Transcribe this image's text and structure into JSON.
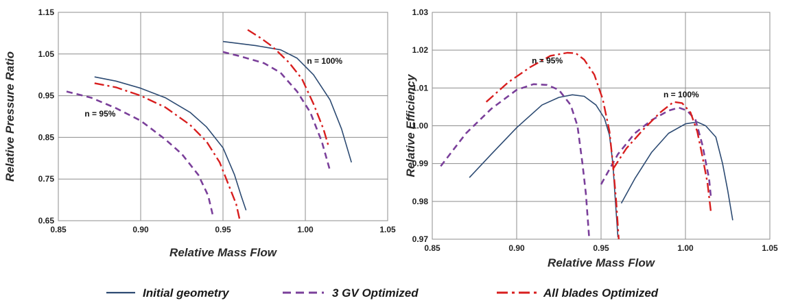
{
  "colors": {
    "initial": "#2c4a72",
    "gv3": "#7a3f9a",
    "all": "#d81e1e"
  },
  "legend": {
    "placement": "bottom-center",
    "items": [
      {
        "label": "Initial geometry",
        "style": "solid",
        "color": "#2c4a72"
      },
      {
        "label": "3 GV Optimized",
        "style": "dashed",
        "color": "#7a3f9a"
      },
      {
        "label": "All blades Optimized",
        "style": "dashdot",
        "color": "#d81e1e"
      }
    ]
  },
  "chart_data": [
    {
      "type": "line",
      "xlabel": "Relative Mass Flow",
      "ylabel": "Relative Pressure Ratio",
      "xlim": [
        0.85,
        1.05
      ],
      "ylim": [
        0.65,
        1.15
      ],
      "xticks": [
        "0.85",
        "0.90",
        "0.95",
        "1.00",
        "1.05"
      ],
      "yticks": [
        "0.65",
        "0.75",
        "0.85",
        "0.95",
        "1.05",
        "1.15"
      ],
      "grid": true,
      "annotations": [
        {
          "text": "n = 95%",
          "x": 0.866,
          "y": 0.9
        },
        {
          "text": "n = 100%",
          "x": 1.001,
          "y": 1.027
        }
      ],
      "series": [
        {
          "name": "Initial geometry",
          "style": "solid",
          "group": "n = 95%",
          "points": [
            [
              0.872,
              0.995
            ],
            [
              0.885,
              0.985
            ],
            [
              0.9,
              0.968
            ],
            [
              0.915,
              0.945
            ],
            [
              0.93,
              0.91
            ],
            [
              0.94,
              0.875
            ],
            [
              0.95,
              0.825
            ],
            [
              0.957,
              0.76
            ],
            [
              0.961,
              0.71
            ],
            [
              0.964,
              0.675
            ]
          ]
        },
        {
          "name": "Initial geometry",
          "style": "solid",
          "group": "n = 100%",
          "points": [
            [
              0.95,
              1.08
            ],
            [
              0.97,
              1.07
            ],
            [
              0.985,
              1.06
            ],
            [
              0.995,
              1.04
            ],
            [
              1.005,
              1.0
            ],
            [
              1.015,
              0.94
            ],
            [
              1.022,
              0.87
            ],
            [
              1.028,
              0.79
            ]
          ]
        },
        {
          "name": "3 GV Optimized",
          "style": "dashed",
          "group": "n = 95%",
          "points": [
            [
              0.855,
              0.96
            ],
            [
              0.87,
              0.945
            ],
            [
              0.885,
              0.92
            ],
            [
              0.9,
              0.89
            ],
            [
              0.915,
              0.845
            ],
            [
              0.925,
              0.81
            ],
            [
              0.935,
              0.76
            ],
            [
              0.941,
              0.71
            ],
            [
              0.944,
              0.66
            ]
          ]
        },
        {
          "name": "3 GV Optimized",
          "style": "dashed",
          "group": "n = 100%",
          "points": [
            [
              0.95,
              1.055
            ],
            [
              0.96,
              1.045
            ],
            [
              0.975,
              1.028
            ],
            [
              0.985,
              1.005
            ],
            [
              0.995,
              0.96
            ],
            [
              1.003,
              0.91
            ],
            [
              1.01,
              0.84
            ],
            [
              1.015,
              0.77
            ]
          ]
        },
        {
          "name": "All blades Optimized",
          "style": "dashdot",
          "group": "n = 95%",
          "points": [
            [
              0.872,
              0.98
            ],
            [
              0.885,
              0.97
            ],
            [
              0.9,
              0.95
            ],
            [
              0.915,
              0.922
            ],
            [
              0.93,
              0.88
            ],
            [
              0.94,
              0.84
            ],
            [
              0.948,
              0.79
            ],
            [
              0.954,
              0.73
            ],
            [
              0.958,
              0.69
            ],
            [
              0.96,
              0.655
            ]
          ]
        },
        {
          "name": "All blades Optimized",
          "style": "dashdot",
          "group": "n = 100%",
          "points": [
            [
              0.965,
              1.108
            ],
            [
              0.973,
              1.088
            ],
            [
              0.98,
              1.068
            ],
            [
              0.99,
              1.03
            ],
            [
              0.998,
              0.99
            ],
            [
              1.005,
              0.93
            ],
            [
              1.011,
              0.87
            ],
            [
              1.014,
              0.83
            ]
          ]
        }
      ]
    },
    {
      "type": "line",
      "xlabel": "Relative Mass Flow",
      "ylabel": "Relative Efficiency",
      "xlim": [
        0.85,
        1.05
      ],
      "ylim": [
        0.97,
        1.03
      ],
      "xticks": [
        "0.85",
        "0.90",
        "0.95",
        "1.00",
        "1.05"
      ],
      "yticks": [
        "0.97",
        "0.98",
        "0.99",
        "1.00",
        "1.01",
        "1.02",
        "1.03"
      ],
      "grid": true,
      "annotations": [
        {
          "text": "n = 95%",
          "x": 0.909,
          "y": 1.0165
        },
        {
          "text": "n = 100%",
          "x": 0.987,
          "y": 1.0075
        }
      ],
      "series": [
        {
          "name": "Initial geometry",
          "style": "solid",
          "group": "n = 95%",
          "points": [
            [
              0.872,
              0.9863
            ],
            [
              0.885,
              0.9925
            ],
            [
              0.9,
              0.9995
            ],
            [
              0.915,
              1.0055
            ],
            [
              0.925,
              1.0075
            ],
            [
              0.933,
              1.0082
            ],
            [
              0.94,
              1.0078
            ],
            [
              0.947,
              1.0055
            ],
            [
              0.952,
              1.002
            ],
            [
              0.955,
              0.9975
            ],
            [
              0.957,
              0.99
            ],
            [
              0.9585,
              0.98
            ],
            [
              0.96,
              0.9705
            ]
          ]
        },
        {
          "name": "Initial geometry",
          "style": "solid",
          "group": "n = 100%",
          "points": [
            [
              0.962,
              0.9795
            ],
            [
              0.97,
              0.986
            ],
            [
              0.98,
              0.993
            ],
            [
              0.99,
              0.998
            ],
            [
              1.0,
              1.0005
            ],
            [
              1.007,
              1.001
            ],
            [
              1.012,
              1.0
            ],
            [
              1.018,
              0.997
            ],
            [
              1.022,
              0.99
            ],
            [
              1.025,
              0.983
            ],
            [
              1.028,
              0.975
            ]
          ]
        },
        {
          "name": "3 GV Optimized",
          "style": "dashed",
          "group": "n = 95%",
          "points": [
            [
              0.855,
              0.9893
            ],
            [
              0.87,
              0.998
            ],
            [
              0.885,
              1.0045
            ],
            [
              0.9,
              1.0095
            ],
            [
              0.91,
              1.011
            ],
            [
              0.918,
              1.0108
            ],
            [
              0.925,
              1.0095
            ],
            [
              0.932,
              1.0055
            ],
            [
              0.936,
              1.0
            ],
            [
              0.939,
              0.99
            ],
            [
              0.941,
              0.982
            ],
            [
              0.943,
              0.97
            ]
          ]
        },
        {
          "name": "3 GV Optimized",
          "style": "dashed",
          "group": "n = 100%",
          "points": [
            [
              0.95,
              0.9845
            ],
            [
              0.96,
              0.9925
            ],
            [
              0.97,
              0.998
            ],
            [
              0.98,
              1.0015
            ],
            [
              0.99,
              1.004
            ],
            [
              0.996,
              1.0048
            ],
            [
              1.001,
              1.004
            ],
            [
              1.006,
              1.0015
            ],
            [
              1.01,
              0.995
            ],
            [
              1.014,
              0.986
            ],
            [
              1.015,
              0.9815
            ]
          ]
        },
        {
          "name": "All blades Optimized",
          "style": "dashdot",
          "group": "n = 95%",
          "points": [
            [
              0.882,
              1.0063
            ],
            [
              0.895,
              1.0115
            ],
            [
              0.908,
              1.0155
            ],
            [
              0.92,
              1.0185
            ],
            [
              0.93,
              1.0193
            ],
            [
              0.935,
              1.0192
            ],
            [
              0.94,
              1.0175
            ],
            [
              0.946,
              1.0135
            ],
            [
              0.951,
              1.007
            ],
            [
              0.955,
              0.9985
            ],
            [
              0.957,
              0.99
            ],
            [
              0.959,
              0.98
            ],
            [
              0.9605,
              0.97
            ]
          ]
        },
        {
          "name": "All blades Optimized",
          "style": "dashdot",
          "group": "n = 100%",
          "points": [
            [
              0.957,
              0.9885
            ],
            [
              0.965,
              0.994
            ],
            [
              0.975,
              0.999
            ],
            [
              0.985,
              1.0035
            ],
            [
              0.993,
              1.0063
            ],
            [
              0.998,
              1.006
            ],
            [
              1.003,
              1.0035
            ],
            [
              1.007,
              0.9985
            ],
            [
              1.01,
              0.992
            ],
            [
              1.013,
              0.985
            ],
            [
              1.015,
              0.9775
            ]
          ]
        }
      ]
    }
  ]
}
